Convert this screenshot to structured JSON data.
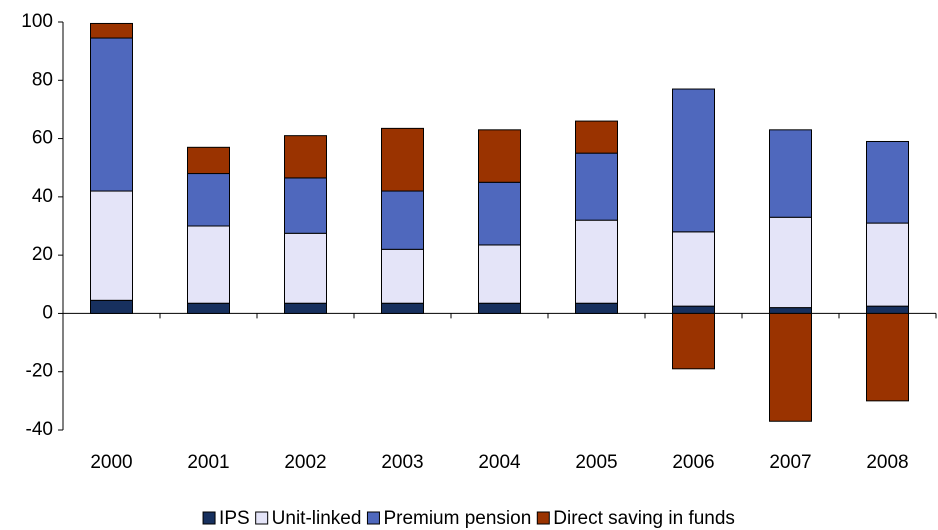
{
  "chart_data": {
    "type": "bar",
    "stacked": true,
    "categories": [
      "2000",
      "2001",
      "2002",
      "2003",
      "2004",
      "2005",
      "2006",
      "2007",
      "2008"
    ],
    "series": [
      {
        "name": "IPS",
        "color": "#17305e",
        "values": [
          4.5,
          3.5,
          3.5,
          3.5,
          3.5,
          3.5,
          2.5,
          2,
          2.5
        ]
      },
      {
        "name": "Unit-linked",
        "color": "#e4e4f8",
        "values": [
          37.5,
          26.5,
          24,
          18.5,
          20,
          28.5,
          25.5,
          31,
          28.5
        ]
      },
      {
        "name": "Premium pension",
        "color": "#4f68bd",
        "values": [
          52.5,
          18,
          19,
          20,
          21.5,
          23,
          49,
          30,
          28
        ]
      },
      {
        "name": "Direct saving in funds",
        "color": "#9a3300",
        "values": [
          5,
          9,
          14.5,
          21.5,
          18,
          11,
          -19,
          -37,
          -30
        ]
      }
    ],
    "ylim": [
      -40,
      100
    ],
    "yticks": [
      -40,
      -20,
      0,
      20,
      40,
      60,
      80,
      100
    ],
    "legend": "bottom"
  }
}
